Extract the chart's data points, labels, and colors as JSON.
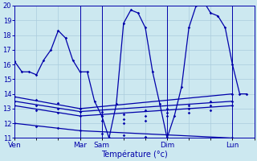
{
  "xlabel": "Température (°c)",
  "background_color": "#cce8f0",
  "grid_color": "#aaccdd",
  "line_color": "#0000aa",
  "ylim": [
    11,
    20
  ],
  "yticks": [
    11,
    12,
    13,
    14,
    15,
    16,
    17,
    18,
    19,
    20
  ],
  "day_labels": [
    "Ven",
    "Mar",
    "Sam",
    "Dim",
    "Lun"
  ],
  "day_x": [
    0,
    36,
    48,
    84,
    120
  ],
  "xmax": 132,
  "series": [
    {
      "x": [
        0,
        4,
        8,
        12,
        16,
        20,
        24,
        28,
        32,
        36,
        40,
        44,
        48,
        52,
        56,
        60,
        64,
        68,
        72,
        76,
        80,
        84,
        88,
        92,
        96,
        100,
        104,
        108,
        112,
        116,
        120,
        124,
        128
      ],
      "y": [
        16.2,
        15.5,
        15.5,
        15.3,
        16.3,
        17.0,
        18.3,
        17.8,
        16.3,
        15.5,
        15.5,
        13.5,
        12.5,
        11.0,
        13.3,
        18.8,
        19.7,
        19.5,
        18.5,
        15.5,
        13.3,
        11.0,
        12.5,
        14.5,
        18.5,
        20.0,
        20.3,
        19.5,
        19.3,
        18.5,
        16.0,
        14.0,
        14.0
      ]
    },
    {
      "x": [
        0,
        36,
        120
      ],
      "y": [
        13.8,
        13.0,
        14.0
      ]
    },
    {
      "x": [
        0,
        36,
        120
      ],
      "y": [
        13.5,
        12.8,
        13.5
      ]
    },
    {
      "x": [
        0,
        36,
        120
      ],
      "y": [
        13.2,
        12.5,
        13.2
      ]
    },
    {
      "x": [
        0,
        36,
        120
      ],
      "y": [
        12.0,
        11.5,
        11.0
      ]
    }
  ],
  "series_markers": [
    {
      "x": [
        0,
        4,
        8,
        12,
        16,
        20,
        24,
        28,
        32,
        36,
        40,
        44,
        48,
        52,
        56,
        60,
        64,
        68,
        72,
        76,
        80,
        84,
        88,
        92,
        96,
        100,
        104,
        108,
        112,
        116,
        120,
        124,
        128
      ],
      "y": [
        16.2,
        15.5,
        15.5,
        15.3,
        16.3,
        17.0,
        18.3,
        17.8,
        16.3,
        15.5,
        15.5,
        13.5,
        12.5,
        11.0,
        13.3,
        18.8,
        19.7,
        19.5,
        18.5,
        15.5,
        13.3,
        11.0,
        12.5,
        14.5,
        18.5,
        20.0,
        20.3,
        19.5,
        19.3,
        18.5,
        16.0,
        14.0,
        14.0
      ]
    },
    {
      "x": [
        0,
        12,
        24,
        36,
        48,
        60,
        72,
        84,
        96,
        108,
        120
      ],
      "y": [
        13.8,
        13.6,
        13.4,
        13.0,
        12.8,
        12.6,
        12.9,
        13.0,
        13.2,
        13.5,
        14.0
      ]
    },
    {
      "x": [
        0,
        12,
        24,
        36,
        48,
        60,
        72,
        84,
        96,
        108,
        120
      ],
      "y": [
        13.5,
        13.2,
        13.0,
        12.8,
        12.5,
        12.3,
        12.5,
        12.7,
        13.0,
        13.2,
        13.5
      ]
    },
    {
      "x": [
        0,
        12,
        24,
        36,
        48,
        60,
        72,
        84,
        96,
        108,
        120
      ],
      "y": [
        13.2,
        12.9,
        12.7,
        12.5,
        12.2,
        12.0,
        12.2,
        12.5,
        12.7,
        12.9,
        13.2
      ]
    },
    {
      "x": [
        0,
        12,
        24,
        36,
        48,
        60,
        72,
        84,
        96,
        108,
        120
      ],
      "y": [
        12.0,
        11.8,
        11.7,
        11.5,
        11.3,
        11.2,
        11.1,
        11.0,
        10.9,
        10.9,
        11.0
      ]
    }
  ],
  "vline_x": [
    36,
    48,
    84,
    120
  ]
}
